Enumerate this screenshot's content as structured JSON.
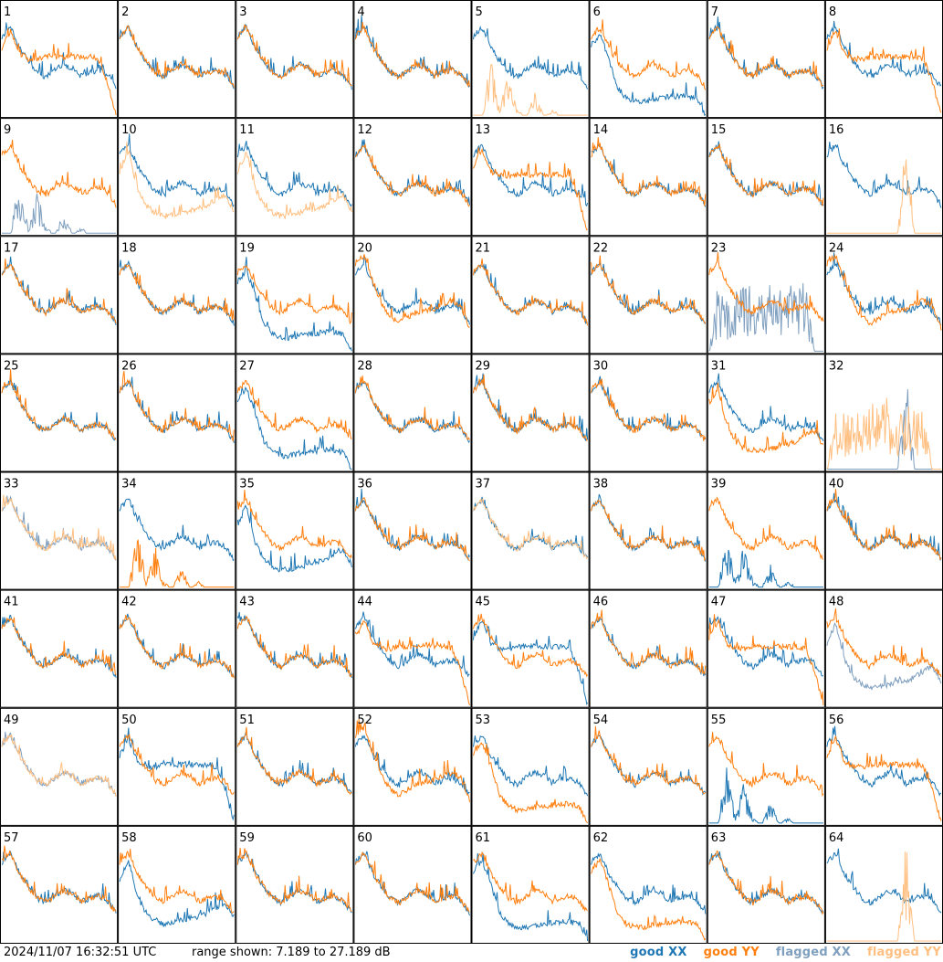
{
  "footer": {
    "timestamp": "2024/11/07 16:32:51 UTC",
    "range_text": "range shown: 7.189 to 27.189 dB",
    "legend": [
      {
        "label": "good XX",
        "color": "#1f77b4"
      },
      {
        "label": "good YY",
        "color": "#ff7f0e"
      },
      {
        "label": "flagged XX",
        "color": "#7f9fbf"
      },
      {
        "label": "flagged YY",
        "color": "#ffbf80"
      }
    ]
  },
  "chart_data": {
    "type": "line",
    "title": "",
    "xlabel": "",
    "ylabel": "",
    "ylim": [
      7.189,
      27.189
    ],
    "grid": {
      "rows": 8,
      "cols": 8
    },
    "colors": {
      "good_xx": "#1f77b4",
      "good_yy": "#ff7f0e",
      "flagged_xx": "#7f9fbf",
      "flagged_yy": "#ffbf80"
    },
    "shapes": {
      "bowl": [
        0.7,
        0.78,
        0.6,
        0.48,
        0.38,
        0.34,
        0.4,
        0.45,
        0.42,
        0.35,
        0.38,
        0.4,
        0.36,
        0.25
      ],
      "bowl_deep": [
        0.78,
        0.85,
        0.62,
        0.42,
        0.3,
        0.25,
        0.3,
        0.35,
        0.36,
        0.38,
        0.42,
        0.45,
        0.4,
        0.2
      ],
      "bowl_low": [
        0.55,
        0.72,
        0.4,
        0.25,
        0.18,
        0.15,
        0.16,
        0.18,
        0.2,
        0.22,
        0.25,
        0.3,
        0.34,
        0.2
      ],
      "hump": [
        0.55,
        0.68,
        0.55,
        0.38,
        0.25,
        0.18,
        0.22,
        0.28,
        0.35,
        0.45,
        0.55,
        0.62,
        0.7,
        0.35
      ],
      "plateau_drop": [
        0.6,
        0.75,
        0.55,
        0.5,
        0.5,
        0.52,
        0.52,
        0.52,
        0.52,
        0.52,
        0.52,
        0.5,
        0.3,
        0.0
      ],
      "dip_low": [
        0.62,
        0.72,
        0.5,
        0.25,
        0.15,
        0.12,
        0.12,
        0.14,
        0.15,
        0.16,
        0.17,
        0.17,
        0.15,
        0.0
      ],
      "spikes": [
        0.0,
        0.0,
        0.55,
        0.05,
        0.4,
        0.05,
        0.0,
        0.2,
        0.0,
        0.05,
        0.0,
        0.0,
        0.02,
        0.0
      ],
      "spike_single": [
        0.0,
        0.0,
        0.0,
        0.0,
        0.0,
        0.0,
        0.0,
        0.0,
        0.0,
        0.9,
        0.0,
        0.0,
        0.0,
        0.0
      ],
      "noisy_mid": [
        0.0,
        0.6,
        0.5,
        0.55,
        0.62,
        0.58,
        0.6,
        0.65,
        0.55,
        0.6,
        0.58,
        0.62,
        0.0,
        0.0
      ]
    },
    "panels": [
      {
        "id": 1,
        "xx": {
          "shape": "bowl",
          "st": "g"
        },
        "yy": {
          "shape": "plateau_drop",
          "st": "g"
        }
      },
      {
        "id": 2,
        "xx": {
          "shape": "bowl",
          "st": "g"
        },
        "yy": {
          "shape": "bowl",
          "st": "g"
        }
      },
      {
        "id": 3,
        "xx": {
          "shape": "bowl",
          "st": "g"
        },
        "yy": {
          "shape": "bowl",
          "st": "g"
        }
      },
      {
        "id": 4,
        "xx": {
          "shape": "bowl",
          "st": "g"
        },
        "yy": {
          "shape": "bowl",
          "st": "g"
        }
      },
      {
        "id": 5,
        "xx": {
          "shape": "bowl",
          "st": "g"
        },
        "yy": {
          "shape": "spikes",
          "st": "f"
        }
      },
      {
        "id": 6,
        "xx": {
          "shape": "dip_low",
          "st": "g"
        },
        "yy": {
          "shape": "bowl",
          "st": "g"
        }
      },
      {
        "id": 7,
        "xx": {
          "shape": "bowl",
          "st": "g"
        },
        "yy": {
          "shape": "bowl",
          "st": "g"
        }
      },
      {
        "id": 8,
        "xx": {
          "shape": "bowl",
          "st": "g"
        },
        "yy": {
          "shape": "plateau_drop",
          "st": "g"
        }
      },
      {
        "id": 9,
        "xx": {
          "shape": "spikes",
          "st": "f"
        },
        "yy": {
          "shape": "bowl",
          "st": "g"
        }
      },
      {
        "id": 10,
        "xx": {
          "shape": "bowl",
          "st": "g"
        },
        "yy": {
          "shape": "bowl_low",
          "st": "f"
        }
      },
      {
        "id": 11,
        "xx": {
          "shape": "bowl",
          "st": "g"
        },
        "yy": {
          "shape": "bowl_low",
          "st": "f"
        }
      },
      {
        "id": 12,
        "xx": {
          "shape": "bowl",
          "st": "g"
        },
        "yy": {
          "shape": "bowl",
          "st": "g"
        }
      },
      {
        "id": 13,
        "xx": {
          "shape": "bowl",
          "st": "g"
        },
        "yy": {
          "shape": "plateau_drop",
          "st": "g"
        }
      },
      {
        "id": 14,
        "xx": {
          "shape": "bowl",
          "st": "g"
        },
        "yy": {
          "shape": "bowl",
          "st": "g"
        }
      },
      {
        "id": 15,
        "xx": {
          "shape": "bowl",
          "st": "g"
        },
        "yy": {
          "shape": "bowl",
          "st": "g"
        }
      },
      {
        "id": 16,
        "xx": {
          "shape": "bowl",
          "st": "g"
        },
        "yy": {
          "shape": "spike_single",
          "st": "f"
        }
      },
      {
        "id": 17,
        "xx": {
          "shape": "bowl",
          "st": "g"
        },
        "yy": {
          "shape": "bowl",
          "st": "g"
        }
      },
      {
        "id": 18,
        "xx": {
          "shape": "bowl",
          "st": "g"
        },
        "yy": {
          "shape": "bowl",
          "st": "g"
        }
      },
      {
        "id": 19,
        "xx": {
          "shape": "dip_low",
          "st": "g"
        },
        "yy": {
          "shape": "bowl",
          "st": "g"
        }
      },
      {
        "id": 20,
        "xx": {
          "shape": "bowl",
          "st": "g"
        },
        "yy": {
          "shape": "bowl_deep",
          "st": "g"
        }
      },
      {
        "id": 21,
        "xx": {
          "shape": "bowl",
          "st": "g"
        },
        "yy": {
          "shape": "bowl",
          "st": "g"
        }
      },
      {
        "id": 22,
        "xx": {
          "shape": "bowl",
          "st": "g"
        },
        "yy": {
          "shape": "bowl",
          "st": "g"
        }
      },
      {
        "id": 23,
        "xx": {
          "shape": "noisy_mid",
          "st": "f"
        },
        "yy": {
          "shape": "bowl",
          "st": "g"
        }
      },
      {
        "id": 24,
        "xx": {
          "shape": "bowl",
          "st": "g"
        },
        "yy": {
          "shape": "bowl_deep",
          "st": "g"
        }
      },
      {
        "id": 25,
        "xx": {
          "shape": "bowl",
          "st": "g"
        },
        "yy": {
          "shape": "bowl",
          "st": "g"
        }
      },
      {
        "id": 26,
        "xx": {
          "shape": "bowl",
          "st": "g"
        },
        "yy": {
          "shape": "bowl",
          "st": "g"
        }
      },
      {
        "id": 27,
        "xx": {
          "shape": "dip_low",
          "st": "g"
        },
        "yy": {
          "shape": "bowl",
          "st": "g"
        }
      },
      {
        "id": 28,
        "xx": {
          "shape": "bowl",
          "st": "g"
        },
        "yy": {
          "shape": "bowl",
          "st": "g"
        }
      },
      {
        "id": 29,
        "xx": {
          "shape": "bowl",
          "st": "g"
        },
        "yy": {
          "shape": "bowl",
          "st": "g"
        }
      },
      {
        "id": 30,
        "xx": {
          "shape": "bowl",
          "st": "g"
        },
        "yy": {
          "shape": "bowl",
          "st": "g"
        }
      },
      {
        "id": 31,
        "xx": {
          "shape": "bowl",
          "st": "g"
        },
        "yy": {
          "shape": "bowl_low",
          "st": "g"
        }
      },
      {
        "id": 32,
        "xx": {
          "shape": "spike_single",
          "st": "f"
        },
        "yy": {
          "shape": "noisy_mid",
          "st": "f"
        }
      },
      {
        "id": 33,
        "xx": {
          "shape": "bowl",
          "st": "f"
        },
        "yy": {
          "shape": "bowl",
          "st": "f"
        }
      },
      {
        "id": 34,
        "xx": {
          "shape": "bowl",
          "st": "g"
        },
        "yy": {
          "shape": "spikes",
          "st": "g"
        }
      },
      {
        "id": 35,
        "xx": {
          "shape": "bowl_low",
          "st": "g"
        },
        "yy": {
          "shape": "bowl",
          "st": "g"
        }
      },
      {
        "id": 36,
        "xx": {
          "shape": "bowl",
          "st": "g"
        },
        "yy": {
          "shape": "bowl",
          "st": "g"
        }
      },
      {
        "id": 37,
        "xx": {
          "shape": "bowl",
          "st": "g"
        },
        "yy": {
          "shape": "bowl",
          "st": "f"
        }
      },
      {
        "id": 38,
        "xx": {
          "shape": "bowl",
          "st": "g"
        },
        "yy": {
          "shape": "bowl",
          "st": "g"
        }
      },
      {
        "id": 39,
        "xx": {
          "shape": "spikes",
          "st": "g"
        },
        "yy": {
          "shape": "bowl",
          "st": "g"
        }
      },
      {
        "id": 40,
        "xx": {
          "shape": "bowl",
          "st": "g"
        },
        "yy": {
          "shape": "bowl",
          "st": "g"
        }
      },
      {
        "id": 41,
        "xx": {
          "shape": "bowl",
          "st": "g"
        },
        "yy": {
          "shape": "bowl",
          "st": "g"
        }
      },
      {
        "id": 42,
        "xx": {
          "shape": "bowl",
          "st": "g"
        },
        "yy": {
          "shape": "bowl",
          "st": "g"
        }
      },
      {
        "id": 43,
        "xx": {
          "shape": "bowl",
          "st": "g"
        },
        "yy": {
          "shape": "bowl",
          "st": "g"
        }
      },
      {
        "id": 44,
        "xx": {
          "shape": "bowl",
          "st": "g"
        },
        "yy": {
          "shape": "plateau_drop",
          "st": "g"
        }
      },
      {
        "id": 45,
        "xx": {
          "shape": "plateau_drop",
          "st": "g"
        },
        "yy": {
          "shape": "bowl",
          "st": "g"
        }
      },
      {
        "id": 46,
        "xx": {
          "shape": "bowl",
          "st": "g"
        },
        "yy": {
          "shape": "bowl",
          "st": "g"
        }
      },
      {
        "id": 47,
        "xx": {
          "shape": "bowl",
          "st": "g"
        },
        "yy": {
          "shape": "plateau_drop",
          "st": "g"
        }
      },
      {
        "id": 48,
        "xx": {
          "shape": "bowl_low",
          "st": "f"
        },
        "yy": {
          "shape": "bowl",
          "st": "g"
        }
      },
      {
        "id": 49,
        "xx": {
          "shape": "bowl",
          "st": "f"
        },
        "yy": {
          "shape": "bowl",
          "st": "f"
        }
      },
      {
        "id": 50,
        "xx": {
          "shape": "plateau_drop",
          "st": "g"
        },
        "yy": {
          "shape": "bowl",
          "st": "g"
        }
      },
      {
        "id": 51,
        "xx": {
          "shape": "bowl",
          "st": "g"
        },
        "yy": {
          "shape": "bowl",
          "st": "g"
        }
      },
      {
        "id": 52,
        "xx": {
          "shape": "bowl",
          "st": "g"
        },
        "yy": {
          "shape": "bowl_deep",
          "st": "g"
        }
      },
      {
        "id": 53,
        "xx": {
          "shape": "bowl",
          "st": "g"
        },
        "yy": {
          "shape": "dip_low",
          "st": "g"
        }
      },
      {
        "id": 54,
        "xx": {
          "shape": "bowl",
          "st": "g"
        },
        "yy": {
          "shape": "bowl",
          "st": "g"
        }
      },
      {
        "id": 55,
        "xx": {
          "shape": "spikes",
          "st": "g"
        },
        "yy": {
          "shape": "bowl",
          "st": "g"
        }
      },
      {
        "id": 56,
        "xx": {
          "shape": "bowl",
          "st": "g"
        },
        "yy": {
          "shape": "plateau_drop",
          "st": "g"
        }
      },
      {
        "id": 57,
        "xx": {
          "shape": "bowl",
          "st": "g"
        },
        "yy": {
          "shape": "bowl",
          "st": "g"
        }
      },
      {
        "id": 58,
        "xx": {
          "shape": "bowl_low",
          "st": "g"
        },
        "yy": {
          "shape": "bowl",
          "st": "g"
        }
      },
      {
        "id": 59,
        "xx": {
          "shape": "bowl",
          "st": "g"
        },
        "yy": {
          "shape": "bowl",
          "st": "g"
        }
      },
      {
        "id": 60,
        "xx": {
          "shape": "bowl",
          "st": "g"
        },
        "yy": {
          "shape": "bowl",
          "st": "g"
        }
      },
      {
        "id": 61,
        "xx": {
          "shape": "dip_low",
          "st": "g"
        },
        "yy": {
          "shape": "bowl",
          "st": "g"
        }
      },
      {
        "id": 62,
        "xx": {
          "shape": "bowl",
          "st": "g"
        },
        "yy": {
          "shape": "dip_low",
          "st": "g"
        }
      },
      {
        "id": 63,
        "xx": {
          "shape": "bowl",
          "st": "g"
        },
        "yy": {
          "shape": "bowl",
          "st": "g"
        }
      },
      {
        "id": 64,
        "xx": {
          "shape": "bowl",
          "st": "g"
        },
        "yy": {
          "shape": "spike_single",
          "st": "f"
        }
      }
    ]
  }
}
